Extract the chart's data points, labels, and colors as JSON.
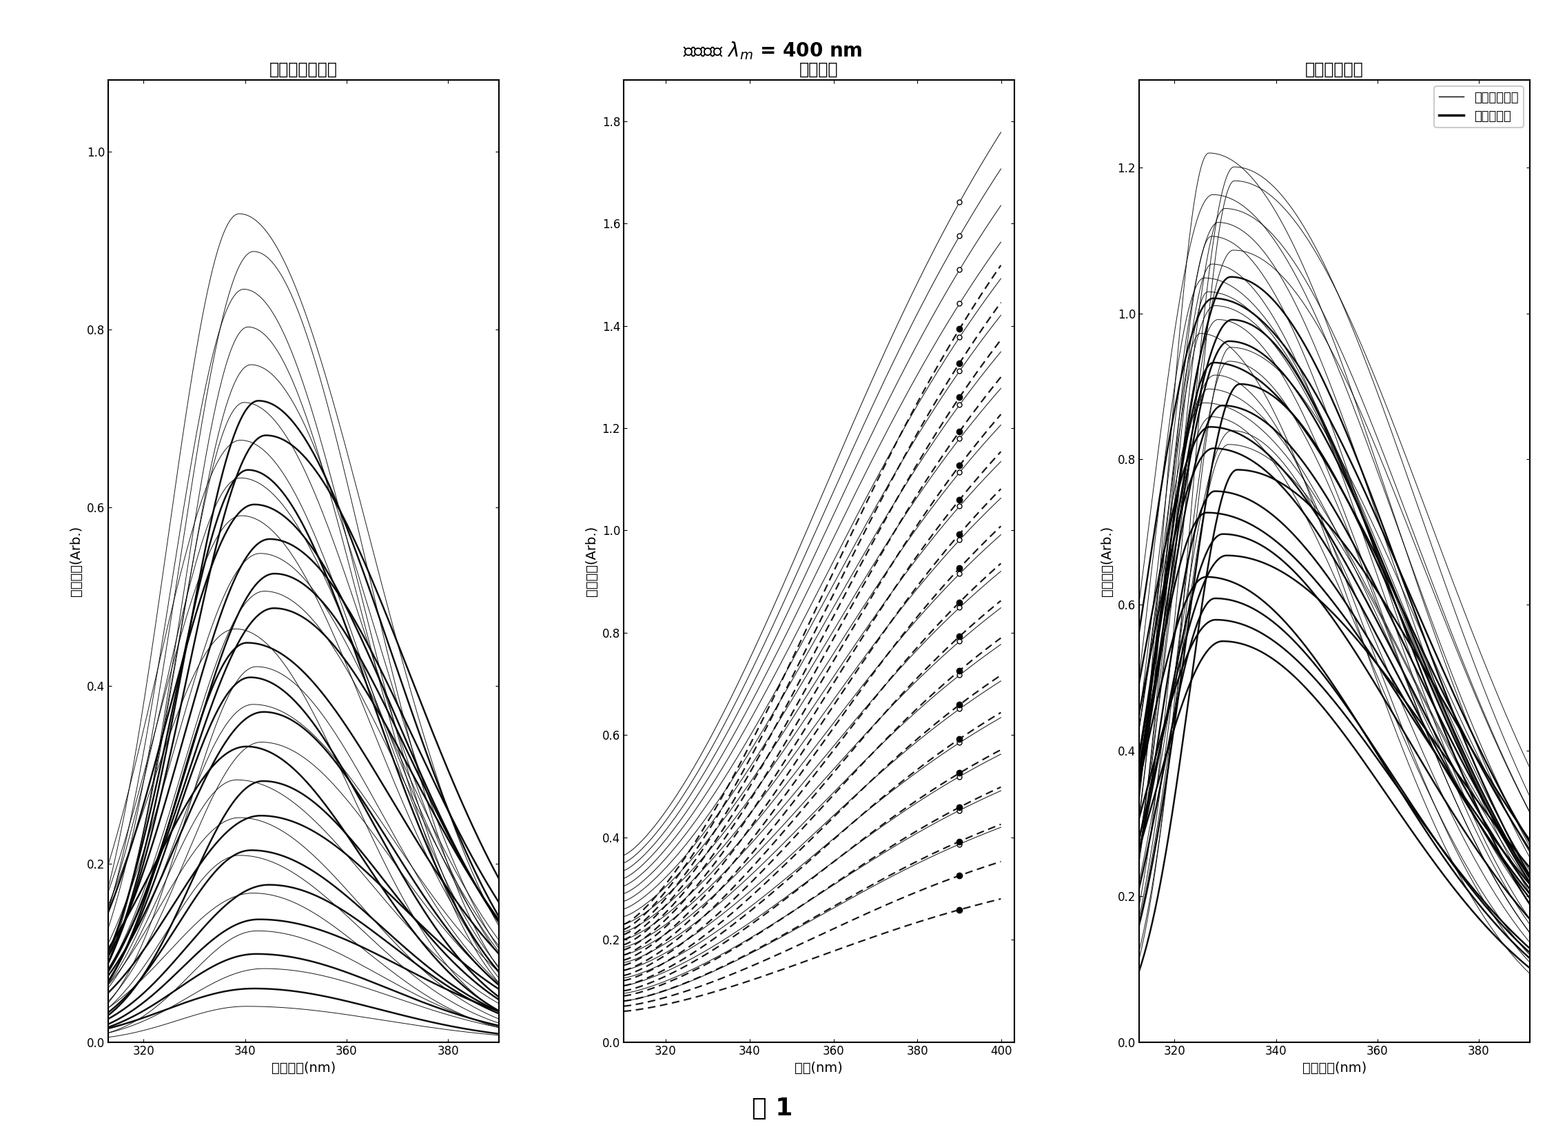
{
  "fig_label": "图 1",
  "panel1_title": "未经校正的荧光",
  "panel2_title": "反射光谱",
  "panel3_title": "经校正的荧光",
  "panel1_xlabel": "激发波长(nm)",
  "panel2_xlabel": "波长(nm)",
  "panel3_xlabel": "激发波长(nm)",
  "panel1_ylabel": "荧光强度(Arb.)",
  "panel2_ylabel": "反射强度(Arb.)",
  "panel3_ylabel": "荧光强度(Arb.)",
  "legend_nondiabetic": "非糖尿病患者",
  "legend_diabetic": "糖尿病患者",
  "panel1_xlim": [
    313,
    390
  ],
  "panel1_ylim": [
    0,
    1.08
  ],
  "panel2_xlim": [
    310,
    403
  ],
  "panel2_ylim": [
    0,
    1.88
  ],
  "panel3_xlim": [
    313,
    390
  ],
  "panel3_ylim": [
    0,
    1.32
  ],
  "panel1_xticks": [
    320,
    340,
    360,
    380
  ],
  "panel2_xticks": [
    320,
    340,
    360,
    380,
    400
  ],
  "panel3_xticks": [
    320,
    340,
    360,
    380
  ],
  "panel1_yticks": [
    0,
    0.2,
    0.4,
    0.6,
    0.8,
    1.0
  ],
  "panel2_yticks": [
    0,
    0.2,
    0.4,
    0.6,
    0.8,
    1.0,
    1.2,
    1.4,
    1.6,
    1.8
  ],
  "panel3_yticks": [
    0,
    0.2,
    0.4,
    0.6,
    0.8,
    1.0,
    1.2
  ],
  "n_nondiabetic": 22,
  "n_diabetic": 18,
  "background_color": "#ffffff"
}
